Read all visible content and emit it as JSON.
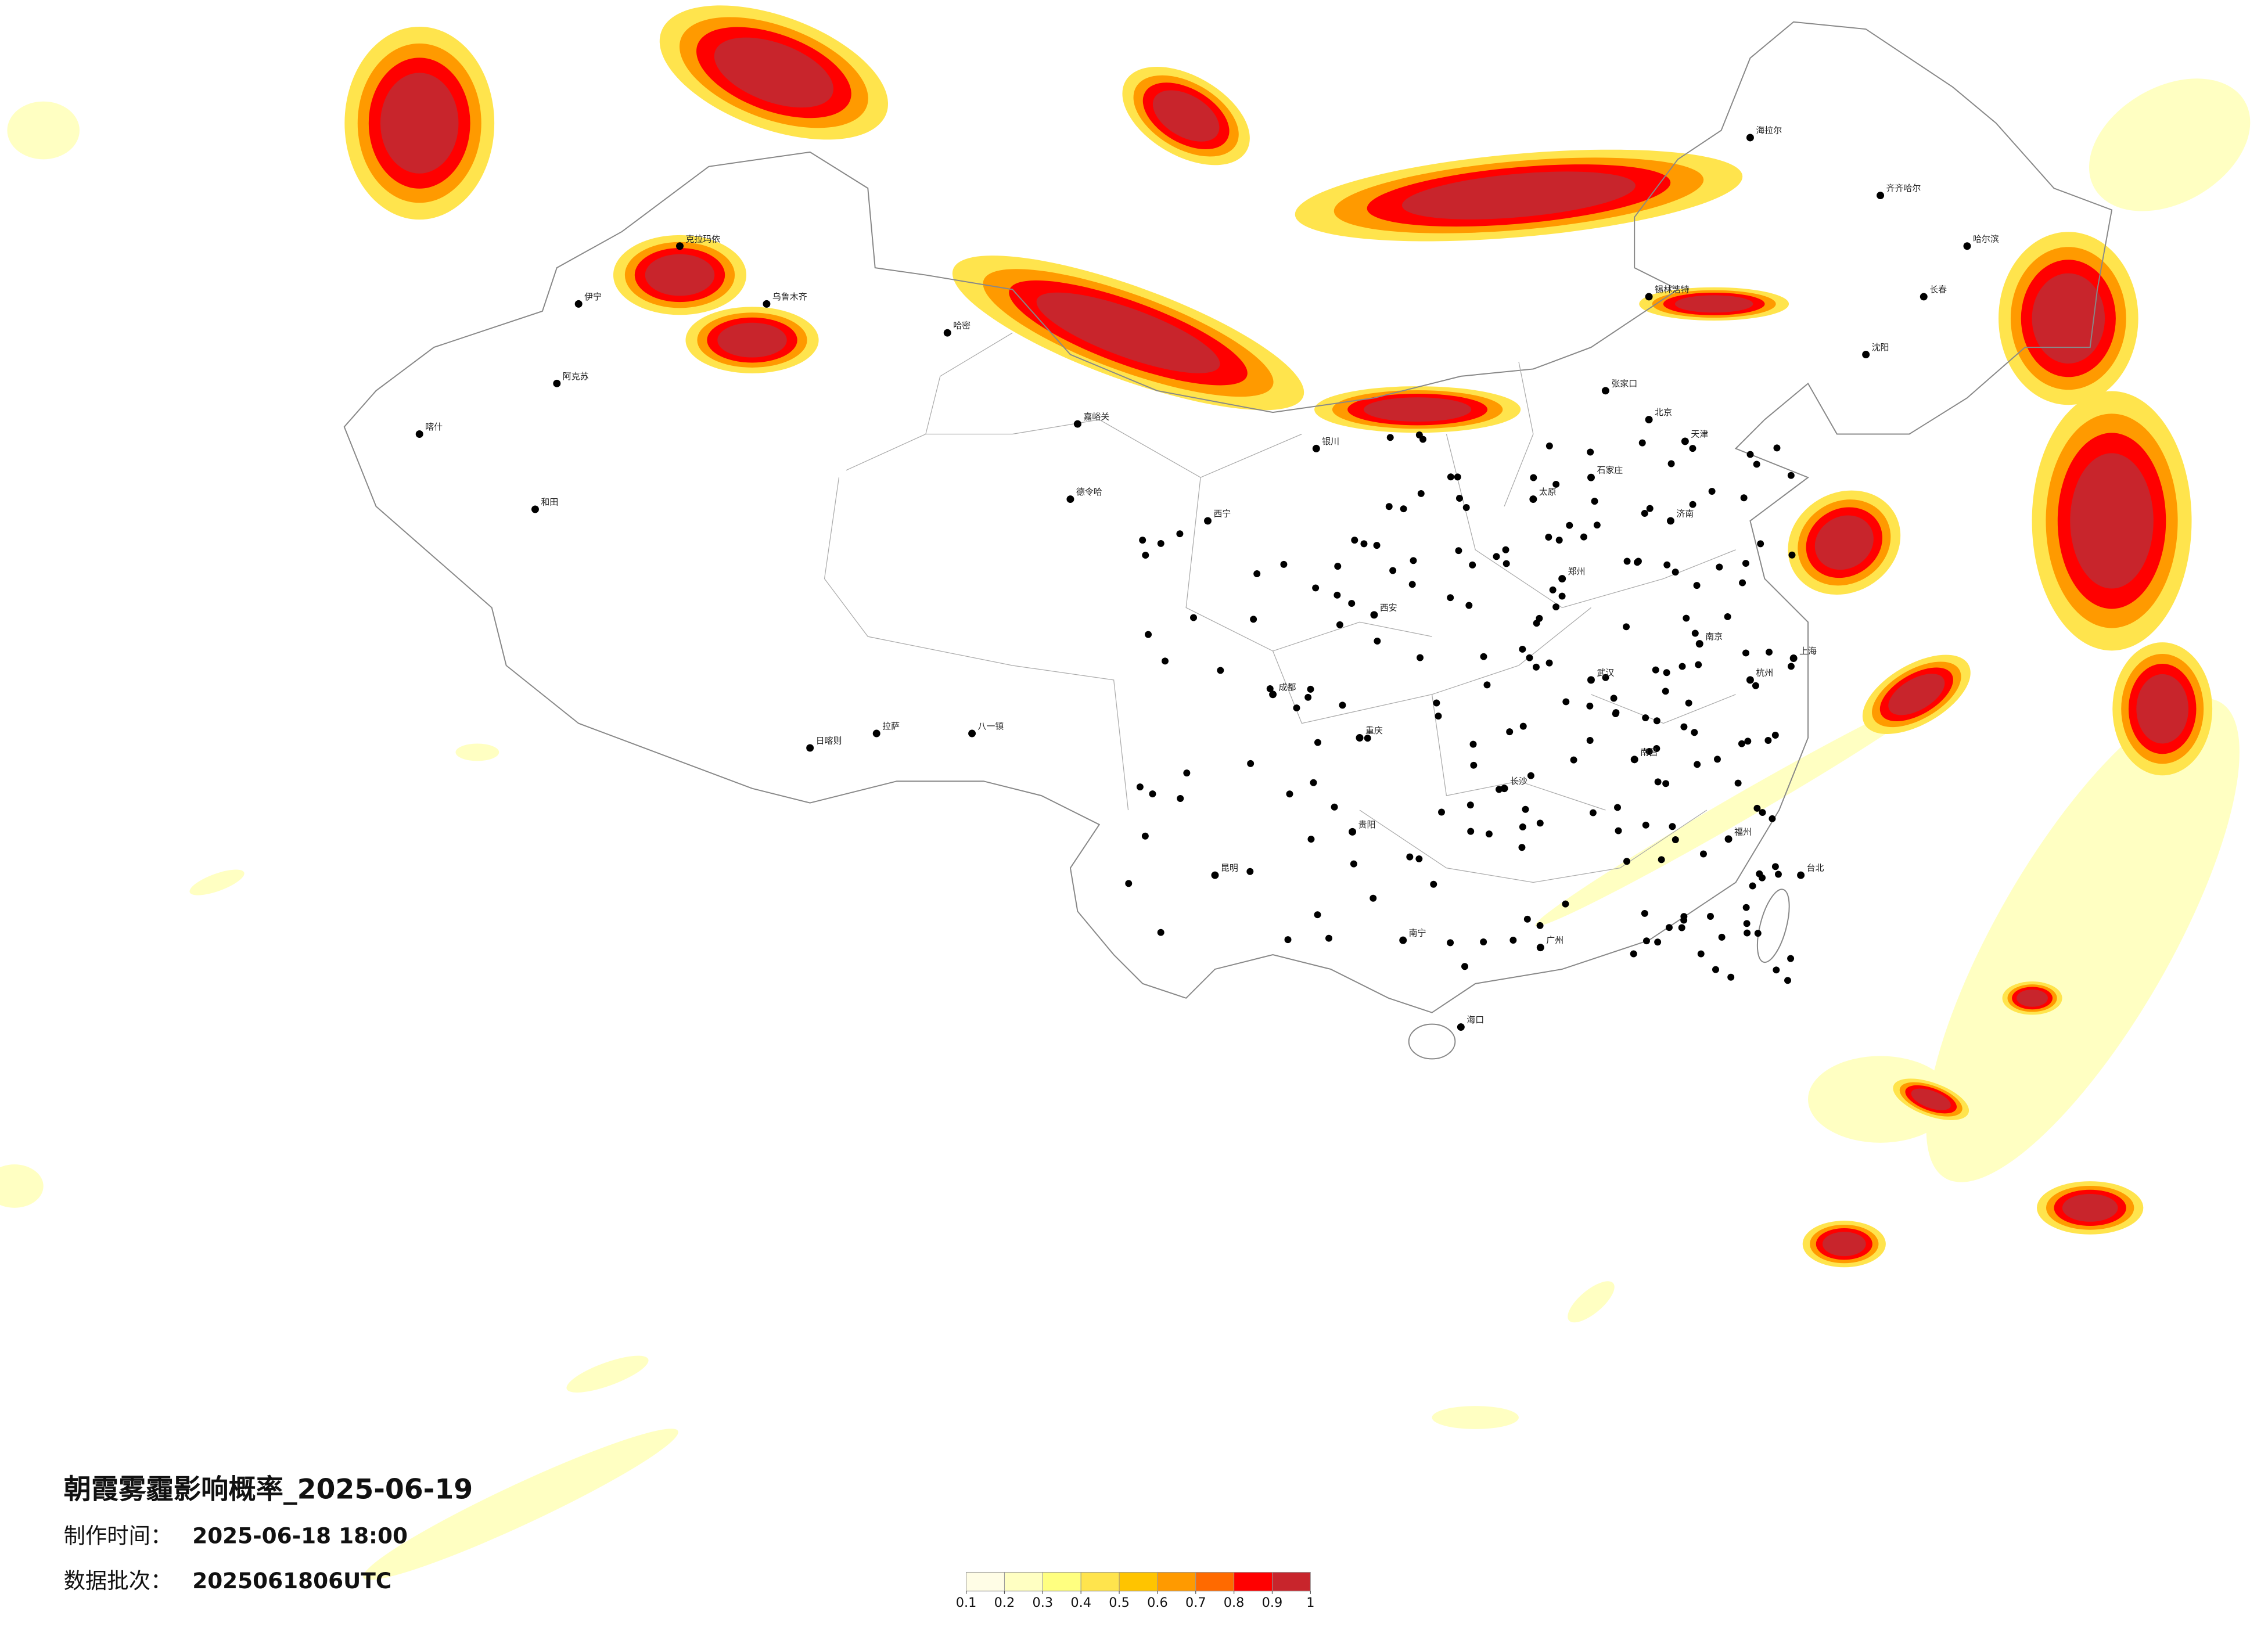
{
  "map": {
    "title": "朝霞雾霾影响概率_2025-06-19",
    "made_label": "制作时间：",
    "made_time": "2025-06-18 18:00",
    "batch_label": "数据批次：",
    "batch": "2025061806UTC",
    "cities": [
      "乌鲁木齐",
      "克拉玛依",
      "伊宁",
      "阿克苏",
      "喀什",
      "和田",
      "哈密",
      "嘉峪关",
      "德令哈",
      "拉萨",
      "日喀则",
      "八一镇",
      "西宁",
      "银川",
      "北京",
      "天津",
      "石家庄",
      "太原",
      "济南",
      "郑州",
      "西安",
      "成都",
      "重庆",
      "贵阳",
      "昆明",
      "南宁",
      "广州",
      "长沙",
      "武汉",
      "南昌",
      "杭州",
      "上海",
      "南京",
      "福州",
      "台北",
      "海口",
      "沈阳",
      "长春",
      "哈尔滨",
      "齐齐哈尔",
      "海拉尔",
      "锡林浩特",
      "张家口"
    ]
  },
  "legend": {
    "colors": [
      "#fffde6",
      "#ffffc2",
      "#ffff80",
      "#ffe44d",
      "#ffc400",
      "#ff9a00",
      "#ff6a00",
      "#ff0000",
      "#c8252c"
    ],
    "ticks": [
      0.1,
      0.2,
      0.3,
      0.4,
      0.5,
      0.6,
      0.7,
      0.8,
      0.9,
      1
    ]
  }
}
